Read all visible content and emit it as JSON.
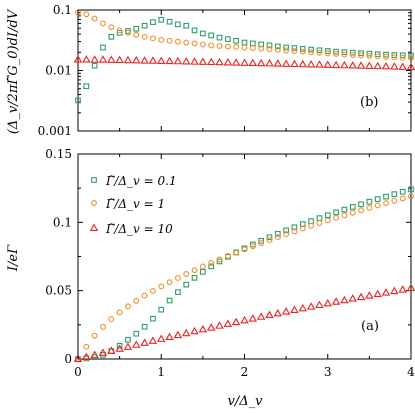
{
  "figure": {
    "xlabel": "v/Δ_v",
    "xticks": [
      "0",
      "1",
      "2",
      "3",
      "4"
    ]
  },
  "chart_data": [
    {
      "panel": "(b)",
      "type": "scatter",
      "ylabel": "(Δ_v/2πΓ̃G_0)dI/dV",
      "xlim": [
        0,
        4
      ],
      "ylim": [
        0.001,
        0.1
      ],
      "yscale": "log",
      "ytick_labels": [
        "0.001",
        "0.01",
        "0.1"
      ],
      "grid": false,
      "series": [
        {
          "color": "#2e9e6b",
          "marker": "square",
          "x": [
            0,
            0.1,
            0.2,
            0.3,
            0.4,
            0.5,
            0.6,
            0.7,
            0.8,
            0.9,
            1.0,
            1.1,
            1.2,
            1.3,
            1.4,
            1.5,
            1.6,
            1.7,
            1.8,
            1.9,
            2.0,
            2.1,
            2.2,
            2.3,
            2.4,
            2.5,
            2.6,
            2.7,
            2.8,
            2.9,
            3.0,
            3.1,
            3.2,
            3.3,
            3.4,
            3.5,
            3.6,
            3.7,
            3.8,
            3.9,
            4.0
          ],
          "y": [
            0.0032,
            0.0055,
            0.012,
            0.024,
            0.036,
            0.042,
            0.045,
            0.049,
            0.055,
            0.063,
            0.069,
            0.064,
            0.058,
            0.055,
            0.046,
            0.041,
            0.038,
            0.035,
            0.033,
            0.031,
            0.029,
            0.028,
            0.027,
            0.026,
            0.025,
            0.024,
            0.0235,
            0.0228,
            0.0222,
            0.0216,
            0.021,
            0.0205,
            0.0201,
            0.0197,
            0.0193,
            0.019,
            0.0186,
            0.0183,
            0.018,
            0.0178,
            0.0175
          ]
        },
        {
          "color": "#f28e2b",
          "marker": "circle",
          "x": [
            0,
            0.1,
            0.2,
            0.3,
            0.4,
            0.5,
            0.6,
            0.7,
            0.8,
            0.9,
            1.0,
            1.1,
            1.2,
            1.3,
            1.4,
            1.5,
            1.6,
            1.7,
            1.8,
            1.9,
            2.0,
            2.1,
            2.2,
            2.3,
            2.4,
            2.5,
            2.6,
            2.7,
            2.8,
            2.9,
            3.0,
            3.1,
            3.2,
            3.3,
            3.4,
            3.5,
            3.6,
            3.7,
            3.8,
            3.9,
            4.0
          ],
          "y": [
            0.09,
            0.085,
            0.072,
            0.06,
            0.052,
            0.046,
            0.042,
            0.039,
            0.036,
            0.034,
            0.032,
            0.031,
            0.03,
            0.029,
            0.028,
            0.027,
            0.026,
            0.0255,
            0.025,
            0.0245,
            0.024,
            0.0235,
            0.023,
            0.0225,
            0.022,
            0.0215,
            0.021,
            0.0205,
            0.02,
            0.0196,
            0.0192,
            0.0188,
            0.0184,
            0.018,
            0.0177,
            0.0174,
            0.0171,
            0.0168,
            0.0165,
            0.0162,
            0.016
          ]
        },
        {
          "color": "#e8231f",
          "marker": "triangle",
          "x": [
            0,
            0.1,
            0.2,
            0.3,
            0.4,
            0.5,
            0.6,
            0.7,
            0.8,
            0.9,
            1.0,
            1.1,
            1.2,
            1.3,
            1.4,
            1.5,
            1.6,
            1.7,
            1.8,
            1.9,
            2.0,
            2.1,
            2.2,
            2.3,
            2.4,
            2.5,
            2.6,
            2.7,
            2.8,
            2.9,
            3.0,
            3.1,
            3.2,
            3.3,
            3.4,
            3.5,
            3.6,
            3.7,
            3.8,
            3.9,
            4.0
          ],
          "y": [
            0.0152,
            0.0152,
            0.0151,
            0.0151,
            0.015,
            0.0149,
            0.0148,
            0.0147,
            0.0146,
            0.0145,
            0.0144,
            0.0143,
            0.0142,
            0.0141,
            0.014,
            0.0139,
            0.0138,
            0.0137,
            0.0136,
            0.0135,
            0.0134,
            0.0133,
            0.0132,
            0.0131,
            0.013,
            0.0129,
            0.0128,
            0.0127,
            0.0126,
            0.0125,
            0.0124,
            0.0123,
            0.0122,
            0.0121,
            0.012,
            0.0119,
            0.0118,
            0.0117,
            0.0116,
            0.0115,
            0.0114
          ]
        }
      ]
    },
    {
      "panel": "(a)",
      "type": "scatter",
      "ylabel": "I/eΓ",
      "xlim": [
        0,
        4
      ],
      "ylim": [
        0,
        0.15
      ],
      "ytick_labels": [
        "0",
        "0.05",
        "0.1",
        "0.15"
      ],
      "legend": "top-left",
      "grid": false,
      "series": [
        {
          "name": "Γ̃/Δ_v = 0.1",
          "color": "#2e9e6b",
          "marker": "square",
          "x": [
            0,
            0.1,
            0.2,
            0.3,
            0.4,
            0.5,
            0.6,
            0.7,
            0.8,
            0.9,
            1.0,
            1.1,
            1.2,
            1.3,
            1.4,
            1.5,
            1.6,
            1.7,
            1.8,
            1.9,
            2.0,
            2.1,
            2.2,
            2.3,
            2.4,
            2.5,
            2.6,
            2.7,
            2.8,
            2.9,
            3.0,
            3.1,
            3.2,
            3.3,
            3.4,
            3.5,
            3.6,
            3.7,
            3.8,
            3.9,
            4.0
          ],
          "y": [
            0,
            0.0004,
            0.0013,
            0.003,
            0.0058,
            0.0097,
            0.0141,
            0.0185,
            0.0236,
            0.0295,
            0.0361,
            0.0428,
            0.0489,
            0.0544,
            0.0594,
            0.0638,
            0.0678,
            0.0714,
            0.0748,
            0.078,
            0.081,
            0.0838,
            0.0865,
            0.0891,
            0.0916,
            0.0941,
            0.0964,
            0.0987,
            0.1009,
            0.1031,
            0.1052,
            0.1073,
            0.1093,
            0.1113,
            0.1132,
            0.1151,
            0.117,
            0.1188,
            0.1206,
            0.1224,
            0.1241
          ]
        },
        {
          "name": "Γ̃/Δ_v = 1",
          "color": "#f28e2b",
          "marker": "circle",
          "x": [
            0,
            0.1,
            0.2,
            0.3,
            0.4,
            0.5,
            0.6,
            0.7,
            0.8,
            0.9,
            1.0,
            1.1,
            1.2,
            1.3,
            1.4,
            1.5,
            1.6,
            1.7,
            1.8,
            1.9,
            2.0,
            2.1,
            2.2,
            2.3,
            2.4,
            2.5,
            2.6,
            2.7,
            2.8,
            2.9,
            3.0,
            3.1,
            3.2,
            3.3,
            3.4,
            3.5,
            3.6,
            3.7,
            3.8,
            3.9,
            4.0
          ],
          "y": [
            0,
            0.009,
            0.017,
            0.0236,
            0.0292,
            0.0341,
            0.0385,
            0.0425,
            0.0463,
            0.0498,
            0.0531,
            0.0562,
            0.0593,
            0.0622,
            0.065,
            0.0677,
            0.0703,
            0.0729,
            0.0754,
            0.0778,
            0.0802,
            0.0825,
            0.0848,
            0.087,
            0.0892,
            0.0913,
            0.0934,
            0.0955,
            0.0975,
            0.0995,
            0.1014,
            0.1033,
            0.1052,
            0.107,
            0.1088,
            0.1106,
            0.1124,
            0.1141,
            0.1158,
            0.1175,
            0.1191
          ]
        },
        {
          "name": "Γ̃/Δ_v = 10",
          "color": "#e8231f",
          "marker": "triangle",
          "x": [
            0,
            0.1,
            0.2,
            0.3,
            0.4,
            0.5,
            0.6,
            0.7,
            0.8,
            0.9,
            1.0,
            1.1,
            1.2,
            1.3,
            1.4,
            1.5,
            1.6,
            1.7,
            1.8,
            1.9,
            2.0,
            2.1,
            2.2,
            2.3,
            2.4,
            2.5,
            2.6,
            2.7,
            2.8,
            2.9,
            3.0,
            3.1,
            3.2,
            3.3,
            3.4,
            3.5,
            3.6,
            3.7,
            3.8,
            3.9,
            4.0
          ],
          "y": [
            0,
            0.0015,
            0.003,
            0.0045,
            0.006,
            0.0075,
            0.0089,
            0.0104,
            0.0118,
            0.0133,
            0.0147,
            0.0161,
            0.0175,
            0.0189,
            0.0203,
            0.0217,
            0.023,
            0.0244,
            0.0257,
            0.027,
            0.0283,
            0.0296,
            0.0309,
            0.0322,
            0.0334,
            0.0347,
            0.0359,
            0.0371,
            0.0383,
            0.0395,
            0.0407,
            0.0419,
            0.043,
            0.0442,
            0.0453,
            0.0464,
            0.0475,
            0.0486,
            0.0497,
            0.0508,
            0.052
          ]
        }
      ]
    }
  ]
}
